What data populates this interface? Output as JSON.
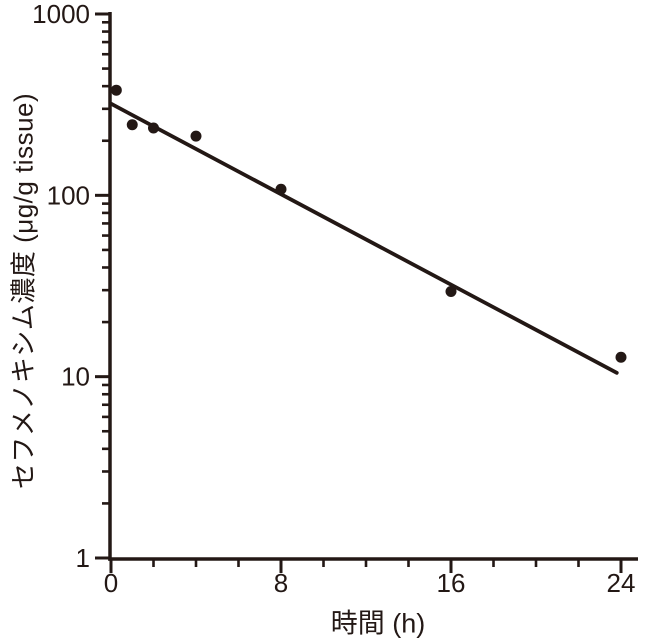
{
  "figure": {
    "background": "#ffffff",
    "ink_color": "#231815"
  },
  "chart_data": {
    "type": "scatter",
    "title": "",
    "xlabel": "時間 (h)",
    "ylabel": "セフメノキシム濃度 (μg/g tissue)",
    "legend": false,
    "grid": false,
    "x_axis": {
      "scale": "linear",
      "min": 0,
      "max": 24,
      "major_ticks": [
        0,
        8,
        16,
        24
      ],
      "minor_tick_step_hours": 2
    },
    "y_axis": {
      "scale": "log10",
      "min": 1,
      "max": 1000,
      "major_ticks": [
        1,
        10,
        100,
        1000
      ],
      "minor_ticks": "2-9 within each decade"
    },
    "points": [
      {
        "t": 0.25,
        "value": 380
      },
      {
        "t": 1,
        "value": 245
      },
      {
        "t": 2,
        "value": 235
      },
      {
        "t": 4,
        "value": 212
      },
      {
        "t": 8,
        "value": 108
      },
      {
        "t": 16,
        "value": 29.5
      },
      {
        "t": 24,
        "value": 12.8
      }
    ],
    "fit_line": {
      "start": {
        "t": 0,
        "value": 320
      },
      "end": {
        "t": 23.8,
        "value": 10.5
      }
    }
  }
}
